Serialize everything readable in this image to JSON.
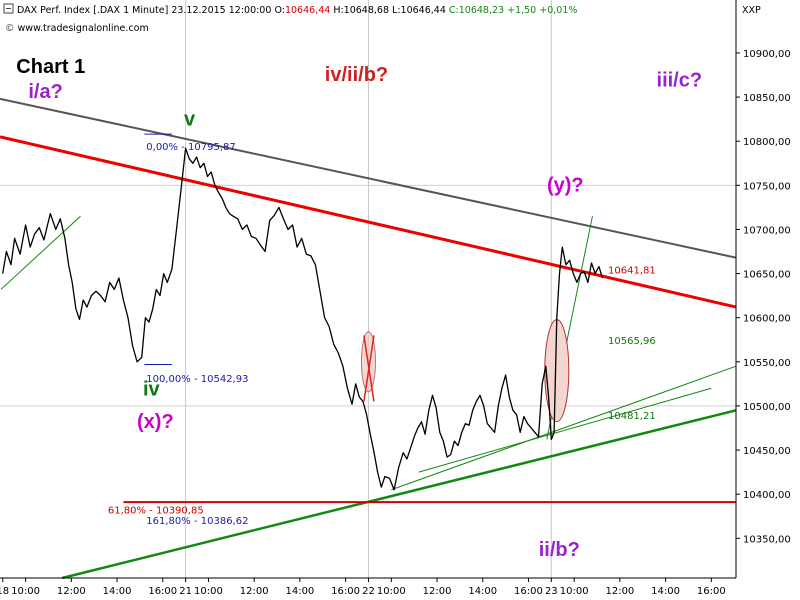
{
  "header": {
    "symbol": "DAX Perf. Index [.DAX  1 Minute] 23.12.2015 12:00:00",
    "open_label": "O:",
    "open": "10646,44",
    "high": "H:10648,68",
    "low": "L:10646,44",
    "close": "C:10648,23",
    "change": "+1,50",
    "change_pct": "+0,01%",
    "source": "www.tradesignalonline.com",
    "axis_unit": "XXP"
  },
  "chart_title": "Chart 1",
  "colors": {
    "price": "#000000",
    "red_channel": "#ee0000",
    "grey_channel": "#555555",
    "green_trend": "#118811",
    "support": "#cc0000",
    "wave_purple": "#9922cc",
    "wave_red": "#cc2222",
    "wave_green": "#117711",
    "fib_blue": "#1a1aaa",
    "ellipse_fill": "#f3d6d0"
  },
  "chart_data": {
    "type": "line",
    "ylim": [
      10305,
      10960
    ],
    "y_ticks": [
      "10900,00",
      "10850,00",
      "10800,00",
      "10750,00",
      "10700,00",
      "10650,00",
      "10600,00",
      "10550,00",
      "10500,00",
      "10450,00",
      "10400,00",
      "10350,00"
    ],
    "y_tick_values": [
      10900,
      10850,
      10800,
      10750,
      10700,
      10650,
      10600,
      10550,
      10500,
      10450,
      10400,
      10350
    ],
    "x_ticks": [
      "18",
      "10:00",
      "12:00",
      "14:00",
      "16:00",
      "21",
      "10:00",
      "12:00",
      "14:00",
      "16:00",
      "22",
      "10:00",
      "12:00",
      "14:00",
      "16:00",
      "23",
      "10:00",
      "12:00",
      "14:00",
      "16:00"
    ],
    "x_tick_session": [
      0,
      0.25,
      0.75,
      1.25,
      1.75,
      2,
      2.25,
      2.75,
      3.25,
      3.75,
      4,
      4.25,
      4.75,
      5.25,
      5.75,
      6,
      6.25,
      6.75,
      7.25,
      7.75
    ],
    "x_range_sessions": [
      -0.03,
      8.02
    ],
    "price_series": {
      "name": "DAX Perf. Index",
      "x_session": [
        0.0,
        0.04,
        0.09,
        0.13,
        0.19,
        0.25,
        0.3,
        0.35,
        0.4,
        0.45,
        0.52,
        0.58,
        0.63,
        0.68,
        0.72,
        0.76,
        0.8,
        0.84,
        0.88,
        0.92,
        0.97,
        1.02,
        1.07,
        1.12,
        1.17,
        1.22,
        1.27,
        1.32,
        1.37,
        1.42,
        1.47,
        1.52,
        1.56,
        1.6,
        1.64,
        1.68,
        1.72,
        1.76,
        1.8,
        1.85,
        1.9,
        1.95,
        2.0,
        2.04,
        2.08,
        2.12,
        2.16,
        2.2,
        2.24,
        2.28,
        2.32,
        2.36,
        2.4,
        2.44,
        2.48,
        2.52,
        2.57,
        2.62,
        2.67,
        2.72,
        2.77,
        2.82,
        2.87,
        2.92,
        2.97,
        3.02,
        3.07,
        3.12,
        3.17,
        3.22,
        3.27,
        3.32,
        3.37,
        3.42,
        3.47,
        3.52,
        3.57,
        3.62,
        3.67,
        3.72,
        3.77,
        3.82,
        3.86,
        3.9,
        3.94,
        3.98,
        4.02,
        4.06,
        4.1,
        4.14,
        4.18,
        4.23,
        4.28,
        4.33,
        4.38,
        4.42,
        4.46,
        4.5,
        4.54,
        4.58,
        4.62,
        4.66,
        4.7,
        4.74,
        4.78,
        4.82,
        4.86,
        4.9,
        4.94,
        4.98,
        5.02,
        5.06,
        5.1,
        5.14,
        5.18,
        5.22,
        5.26,
        5.3,
        5.34,
        5.38,
        5.42,
        5.46,
        5.5,
        5.54,
        5.58,
        5.62,
        5.66,
        5.7,
        5.74,
        5.78,
        5.82,
        5.86,
        5.9,
        5.94,
        5.97,
        6.0,
        6.03,
        6.06,
        6.09,
        6.12,
        6.16,
        6.2,
        6.24,
        6.28,
        6.32,
        6.36,
        6.4,
        6.44,
        6.48,
        6.52,
        6.56
      ],
      "values": [
        10650,
        10675,
        10660,
        10690,
        10672,
        10705,
        10680,
        10695,
        10702,
        10688,
        10718,
        10700,
        10712,
        10690,
        10660,
        10640,
        10610,
        10598,
        10620,
        10612,
        10625,
        10630,
        10625,
        10618,
        10640,
        10632,
        10645,
        10620,
        10600,
        10568,
        10550,
        10555,
        10600,
        10595,
        10610,
        10632,
        10625,
        10650,
        10640,
        10655,
        10700,
        10745,
        10792,
        10780,
        10775,
        10782,
        10770,
        10775,
        10760,
        10765,
        10750,
        10742,
        10735,
        10725,
        10718,
        10715,
        10712,
        10700,
        10705,
        10692,
        10690,
        10682,
        10675,
        10710,
        10716,
        10725,
        10712,
        10700,
        10705,
        10680,
        10690,
        10672,
        10670,
        10660,
        10630,
        10600,
        10590,
        10570,
        10560,
        10545,
        10520,
        10502,
        10525,
        10510,
        10505,
        10490,
        10468,
        10448,
        10425,
        10408,
        10420,
        10418,
        10405,
        10430,
        10447,
        10440,
        10452,
        10465,
        10475,
        10482,
        10468,
        10495,
        10512,
        10498,
        10470,
        10460,
        10442,
        10445,
        10460,
        10455,
        10470,
        10480,
        10478,
        10495,
        10505,
        10512,
        10500,
        10480,
        10475,
        10470,
        10500,
        10520,
        10535,
        10510,
        10495,
        10490,
        10470,
        10488,
        10480,
        10475,
        10470,
        10465,
        10525,
        10545,
        10510,
        10462,
        10470,
        10600,
        10650,
        10680,
        10660,
        10665,
        10650,
        10640,
        10650,
        10652,
        10640,
        10662,
        10650,
        10658,
        10645
      ]
    },
    "trendlines": [
      {
        "name": "red channel",
        "points": [
          [
            -0.03,
            10805
          ],
          [
            8.02,
            10612
          ]
        ]
      },
      {
        "name": "grey channel",
        "points": [
          [
            -0.03,
            10848
          ],
          [
            8.02,
            10668
          ]
        ]
      },
      {
        "name": "green base",
        "points": [
          [
            0.65,
            10305
          ],
          [
            8.02,
            10495
          ]
        ]
      },
      {
        "name": "support 10391",
        "points": [
          [
            1.32,
            10391
          ],
          [
            8.02,
            10391
          ]
        ]
      }
    ],
    "annotations": [
      {
        "text": "Chart 1"
      },
      {
        "text": "i/a?"
      },
      {
        "text": "iv/ii/b?"
      },
      {
        "text": "iii/c?"
      },
      {
        "text": "ii/b?"
      },
      {
        "text": "v"
      },
      {
        "text": "iv"
      },
      {
        "text": "(x)?"
      },
      {
        "text": "(y)?"
      },
      {
        "text": "0,00% - 10795,87"
      },
      {
        "text": "100,00% - 10542,93"
      },
      {
        "text": "61,80% - 10390,85"
      },
      {
        "text": "161,80% - 10386,62"
      },
      {
        "text": "10641,81"
      },
      {
        "text": "10565,96"
      },
      {
        "text": "10481,21"
      }
    ]
  }
}
